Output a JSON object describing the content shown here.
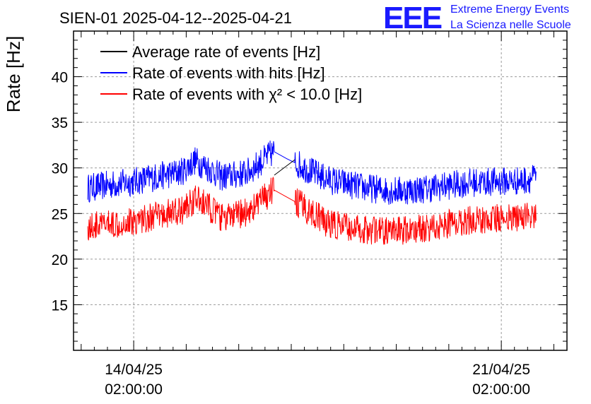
{
  "chart_data": {
    "type": "line",
    "title": "SIEN-01 2025-04-12--2025-04-21",
    "xlabel": "",
    "ylabel": "Rate [Hz]",
    "ylim": [
      10,
      45
    ],
    "xlim": [
      "2025-04-12T22:30:00",
      "2025-04-22T08:00:00"
    ],
    "yticks": [
      15,
      20,
      25,
      30,
      35,
      40
    ],
    "xticks": [
      {
        "time": "2025-04-14T02:00:00",
        "date": "14/04/25",
        "clock": "02:00:00"
      },
      {
        "time": "2025-04-21T02:00:00",
        "date": "21/04/25",
        "clock": "02:00:00"
      }
    ],
    "grid": true,
    "legend_position": "top-left",
    "series": [
      {
        "name": "Average rate of events [Hz]",
        "color": "#000000",
        "x": [
          "2025-04-13T05:00:00",
          "2025-04-14T02:00:00",
          "2025-04-15T00:00:00",
          "2025-04-15T06:00:00",
          "2025-04-15T12:00:00",
          "2025-04-15T18:00:00",
          "2025-04-16T00:00:00",
          "2025-04-16T06:00:00",
          "2025-04-16T12:00:00",
          "2025-04-16T18:00:00",
          "2025-04-17T00:00:00",
          "2025-04-17T06:00:00",
          "2025-04-17T12:00:00",
          "2025-04-17T18:00:00",
          "2025-04-18T00:00:00",
          "2025-04-18T12:00:00",
          "2025-04-19T00:00:00",
          "2025-04-19T12:00:00",
          "2025-04-20T00:00:00",
          "2025-04-20T12:00:00",
          "2025-04-21T00:00:00",
          "2025-04-21T12:00:00",
          "2025-04-21T18:00:00"
        ],
        "values": [
          27.8,
          28.5,
          29.6,
          30.8,
          30.0,
          29.0,
          29.2,
          29.5,
          30.6,
          31.8,
          31.0,
          30.3,
          29.5,
          28.8,
          28.4,
          27.8,
          27.5,
          27.6,
          28.0,
          28.4,
          28.5,
          28.6,
          29.0
        ]
      },
      {
        "name": "Rate of events with hits [Hz]",
        "color": "#0000ff",
        "x": [
          "2025-04-13T05:00:00",
          "2025-04-14T02:00:00",
          "2025-04-15T00:00:00",
          "2025-04-15T06:00:00",
          "2025-04-15T12:00:00",
          "2025-04-15T18:00:00",
          "2025-04-16T00:00:00",
          "2025-04-16T06:00:00",
          "2025-04-16T12:00:00",
          "2025-04-16T18:00:00",
          "2025-04-17T00:00:00",
          "2025-04-17T06:00:00",
          "2025-04-17T12:00:00",
          "2025-04-17T18:00:00",
          "2025-04-18T00:00:00",
          "2025-04-18T12:00:00",
          "2025-04-19T00:00:00",
          "2025-04-19T12:00:00",
          "2025-04-20T00:00:00",
          "2025-04-20T12:00:00",
          "2025-04-21T00:00:00",
          "2025-04-21T12:00:00",
          "2025-04-21T18:00:00"
        ],
        "values": [
          27.8,
          28.5,
          29.6,
          30.8,
          30.0,
          29.0,
          29.2,
          29.5,
          30.6,
          31.8,
          31.0,
          30.3,
          29.5,
          28.8,
          28.4,
          27.8,
          27.5,
          27.6,
          28.0,
          28.4,
          28.5,
          28.6,
          29.0
        ]
      },
      {
        "name": "Rate of events with χ² < 10.0 [Hz]",
        "color": "#ff0000",
        "x": [
          "2025-04-13T05:00:00",
          "2025-04-14T02:00:00",
          "2025-04-15T00:00:00",
          "2025-04-15T06:00:00",
          "2025-04-15T12:00:00",
          "2025-04-15T18:00:00",
          "2025-04-16T00:00:00",
          "2025-04-16T06:00:00",
          "2025-04-16T12:00:00",
          "2025-04-16T18:00:00",
          "2025-04-17T00:00:00",
          "2025-04-17T06:00:00",
          "2025-04-17T12:00:00",
          "2025-04-17T18:00:00",
          "2025-04-18T00:00:00",
          "2025-04-18T12:00:00",
          "2025-04-19T00:00:00",
          "2025-04-19T12:00:00",
          "2025-04-20T00:00:00",
          "2025-04-20T12:00:00",
          "2025-04-21T00:00:00",
          "2025-04-21T12:00:00",
          "2025-04-21T18:00:00"
        ],
        "values": [
          23.5,
          24.2,
          25.3,
          26.6,
          25.8,
          24.5,
          24.7,
          25.2,
          26.3,
          27.6,
          26.8,
          26.0,
          25.0,
          24.0,
          23.6,
          23.2,
          23.0,
          23.3,
          23.8,
          24.3,
          24.5,
          24.6,
          24.9
        ]
      }
    ]
  },
  "logo": {
    "mark": "EEE",
    "line1": "Extreme Energy Events",
    "line2": "La Scienza nelle Scuole",
    "color": "#1a1aff"
  }
}
